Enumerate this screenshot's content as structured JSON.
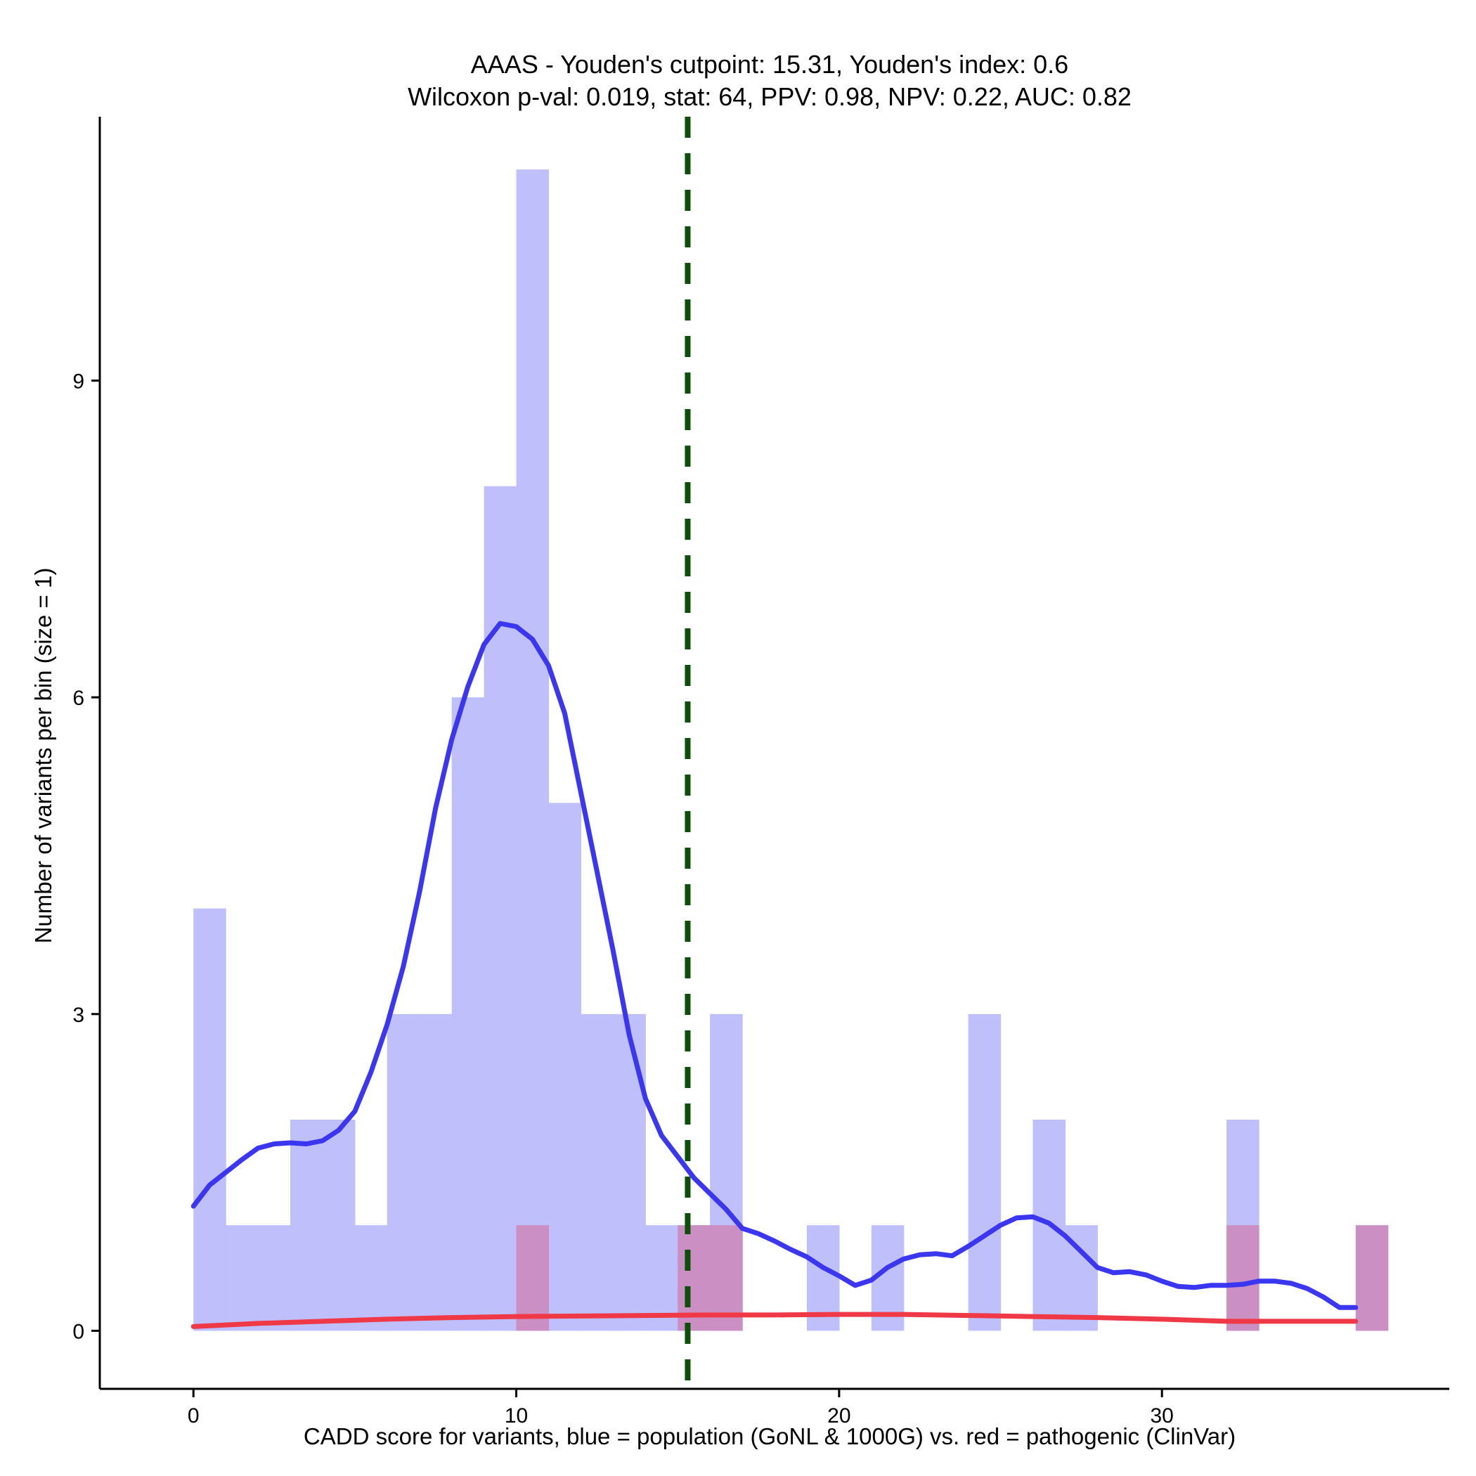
{
  "chart_data": {
    "type": "bar",
    "title": "AAAS - Youden's cutpoint: 15.31, Youden's index: 0.6",
    "subtitle": "Wilcoxon p-val: 0.019, stat: 64, PPV: 0.98, NPV: 0.22, AUC: 0.82",
    "xlabel": "CADD score for variants, blue = population (GoNL & 1000G) vs. red = pathogenic (ClinVar)",
    "ylabel": "Number of variants per bin (size = 1)",
    "xlim": [
      -2.9,
      38.9
    ],
    "ylim": [
      -0.55,
      11.5
    ],
    "x_ticks": [
      0,
      10,
      20,
      30
    ],
    "y_ticks": [
      0,
      3,
      6,
      9
    ],
    "bin_width": 1,
    "cutpoint": 15.31,
    "colors": {
      "population_bar": "#bfbffb",
      "pathogenic_bar": "#cc8fc3",
      "population_density": "#3b36f0",
      "pathogenic_density": "#ef3946",
      "cutpoint_line": "#0b4f0b"
    },
    "series": [
      {
        "kind": "histogram",
        "bins": [
          {
            "x0": 0,
            "count": 4
          },
          {
            "x0": 1,
            "count": 1
          },
          {
            "x0": 2,
            "count": 1
          },
          {
            "x0": 3,
            "count": 2
          },
          {
            "x0": 4,
            "count": 2
          },
          {
            "x0": 5,
            "count": 1
          },
          {
            "x0": 6,
            "count": 3
          },
          {
            "x0": 7,
            "count": 3
          },
          {
            "x0": 8,
            "count": 6
          },
          {
            "x0": 9,
            "count": 8
          },
          {
            "x0": 10,
            "count": 11
          },
          {
            "x0": 11,
            "count": 5
          },
          {
            "x0": 12,
            "count": 3
          },
          {
            "x0": 13,
            "count": 3
          },
          {
            "x0": 14,
            "count": 1
          },
          {
            "x0": 15,
            "count": 1
          },
          {
            "x0": 16,
            "count": 3
          },
          {
            "x0": 19,
            "count": 1
          },
          {
            "x0": 21,
            "count": 1
          },
          {
            "x0": 24,
            "count": 3
          },
          {
            "x0": 26,
            "count": 2
          },
          {
            "x0": 27,
            "count": 1
          },
          {
            "x0": 32,
            "count": 2
          }
        ]
      },
      {
        "kind": "histogram",
        "bins": [
          {
            "x0": 10,
            "count": 1
          },
          {
            "x0": 15,
            "count": 1
          },
          {
            "x0": 16,
            "count": 1
          },
          {
            "x0": 32,
            "count": 1
          },
          {
            "x0": 36,
            "count": 1
          }
        ]
      },
      {
        "kind": "density",
        "points": [
          [
            0,
            1.18
          ],
          [
            0.5,
            1.38
          ],
          [
            1,
            1.5
          ],
          [
            1.5,
            1.62
          ],
          [
            2,
            1.73
          ],
          [
            2.5,
            1.77
          ],
          [
            3,
            1.78
          ],
          [
            3.5,
            1.77
          ],
          [
            4,
            1.8
          ],
          [
            4.5,
            1.9
          ],
          [
            5,
            2.08
          ],
          [
            5.5,
            2.45
          ],
          [
            6,
            2.9
          ],
          [
            6.5,
            3.45
          ],
          [
            7,
            4.15
          ],
          [
            7.5,
            4.95
          ],
          [
            8,
            5.6
          ],
          [
            8.5,
            6.1
          ],
          [
            9,
            6.5
          ],
          [
            9.5,
            6.7
          ],
          [
            10,
            6.67
          ],
          [
            10.5,
            6.55
          ],
          [
            11,
            6.3
          ],
          [
            11.5,
            5.85
          ],
          [
            12,
            5.1
          ],
          [
            12.5,
            4.35
          ],
          [
            13,
            3.6
          ],
          [
            13.5,
            2.8
          ],
          [
            14,
            2.2
          ],
          [
            14.5,
            1.85
          ],
          [
            15,
            1.65
          ],
          [
            15.5,
            1.45
          ],
          [
            16,
            1.3
          ],
          [
            16.5,
            1.15
          ],
          [
            17,
            0.97
          ],
          [
            17.5,
            0.92
          ],
          [
            18,
            0.85
          ],
          [
            18.5,
            0.77
          ],
          [
            19,
            0.7
          ],
          [
            19.5,
            0.6
          ],
          [
            20,
            0.52
          ],
          [
            20.5,
            0.43
          ],
          [
            21,
            0.48
          ],
          [
            21.5,
            0.6
          ],
          [
            22,
            0.68
          ],
          [
            22.5,
            0.72
          ],
          [
            23,
            0.73
          ],
          [
            23.5,
            0.71
          ],
          [
            24,
            0.8
          ],
          [
            24.5,
            0.9
          ],
          [
            25,
            1.0
          ],
          [
            25.5,
            1.07
          ],
          [
            26,
            1.08
          ],
          [
            26.5,
            1.02
          ],
          [
            27,
            0.9
          ],
          [
            27.5,
            0.75
          ],
          [
            28,
            0.6
          ],
          [
            28.5,
            0.55
          ],
          [
            29,
            0.56
          ],
          [
            29.5,
            0.53
          ],
          [
            30,
            0.47
          ],
          [
            30.5,
            0.42
          ],
          [
            31,
            0.41
          ],
          [
            31.5,
            0.43
          ],
          [
            32,
            0.43
          ],
          [
            32.5,
            0.44
          ],
          [
            33,
            0.47
          ],
          [
            33.5,
            0.47
          ],
          [
            34,
            0.45
          ],
          [
            34.5,
            0.4
          ],
          [
            35,
            0.32
          ],
          [
            35.5,
            0.22
          ],
          [
            36,
            0.22
          ]
        ]
      },
      {
        "kind": "density",
        "points": [
          [
            0,
            0.04
          ],
          [
            2,
            0.07
          ],
          [
            4,
            0.09
          ],
          [
            6,
            0.11
          ],
          [
            8,
            0.125
          ],
          [
            10,
            0.135
          ],
          [
            12,
            0.14
          ],
          [
            14,
            0.145
          ],
          [
            16,
            0.15
          ],
          [
            18,
            0.15
          ],
          [
            20,
            0.155
          ],
          [
            22,
            0.155
          ],
          [
            24,
            0.145
          ],
          [
            26,
            0.135
          ],
          [
            28,
            0.125
          ],
          [
            30,
            0.11
          ],
          [
            32,
            0.09
          ],
          [
            34,
            0.09
          ],
          [
            36,
            0.09
          ]
        ]
      }
    ]
  }
}
